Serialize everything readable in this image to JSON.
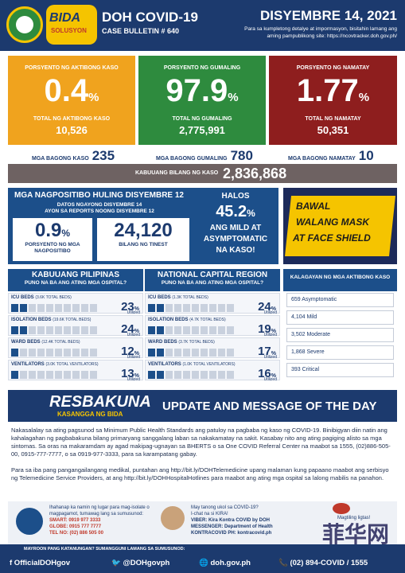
{
  "header": {
    "title": "DOH COVID-19",
    "bulletin": "CASE BULLETIN # 640",
    "date": "DISYEMBRE 14, 2021",
    "note": "Para sa kumpletong detalye at impormasyon, bisitahin lamang ang aming pampublikong site: https://ncovtracker.doh.gov.ph/",
    "logo_text": "BIDA",
    "logo_sub": "SOLUSYON"
  },
  "stats": [
    {
      "head": "PORSYENTO NG AKTIBONG KASO",
      "pct": "0.4",
      "sub": "TOTAL NG AKTIBONG KASO",
      "value": "10,526",
      "color": "#f0a31e"
    },
    {
      "head": "PORSYENTO NG GUMALING",
      "pct": "97.9",
      "sub": "TOTAL NG GUMALING",
      "value": "2,775,991",
      "color": "#2e8b3e"
    },
    {
      "head": "PORSYENTO NG NAMATAY",
      "pct": "1.77",
      "sub": "TOTAL NG NAMATAY",
      "value": "50,351",
      "color": "#8e1e1e"
    }
  ],
  "percent_sign": "%",
  "new_counts": [
    {
      "label": "MGA BAGONG KASO",
      "value": "235"
    },
    {
      "label": "MGA BAGONG GUMALING",
      "value": "780"
    },
    {
      "label": "MGA BAGONG NAMATAY",
      "value": "10"
    }
  ],
  "total": {
    "label": "KABUUANG BILANG NG KASO",
    "value": "2,836,868"
  },
  "positivity": {
    "title": "MGA NAGPOSITIBO HULING DISYEMBRE 12",
    "sub1": "DATOS NGAYONG DISYEMBRE 14",
    "sub2": "AYON SA REPORTS NOONG DISYEMBRE 12",
    "rate": "0.9",
    "rate_label": "PORSYENTO NG MGA NAGPOSITIBO",
    "tested": "24,120",
    "tested_label": "BILANG NG TINEST",
    "halos": "HALOS",
    "asym_pct": "45.2",
    "asym_text1": "ANG MILD AT",
    "asym_text2": "ASYMPTOMATIC",
    "asym_text3": "NA KASO!"
  },
  "mask_banner": {
    "line1": "BAWAL",
    "line2": "WALANG MASK",
    "line3": "AT FACE SHIELD"
  },
  "hospitals": [
    {
      "title": "KABUUANG PILIPINAS",
      "subtitle": "PUNO NA BA ANG ATING MGA OSPITAL?",
      "beds": [
        {
          "name": "ICU BEDS",
          "total": "(3.6K TOTAL BEDS)",
          "value": "23",
          "fill": 0.23
        },
        {
          "name": "ISOLATION BEDS",
          "total": "(19.6K TOTAL BEDS)",
          "value": "24",
          "fill": 0.24
        },
        {
          "name": "WARD BEDS",
          "total": "(12.4K TOTAL BEDS)",
          "value": "12",
          "fill": 0.12
        },
        {
          "name": "VENTILATORS",
          "total": "(3.0K TOTAL VENTILATORS)",
          "value": "13",
          "fill": 0.13
        }
      ]
    },
    {
      "title": "NATIONAL CAPITAL REGION",
      "subtitle": "PUNO NA BA ANG ATING MGA OSPITAL?",
      "beds": [
        {
          "name": "ICU BEDS",
          "total": "(1.3K TOTAL BEDS)",
          "value": "24",
          "fill": 0.24
        },
        {
          "name": "ISOLATION BEDS",
          "total": "(4.7K TOTAL BEDS)",
          "value": "19",
          "fill": 0.19
        },
        {
          "name": "WARD BEDS",
          "total": "(3.7K TOTAL BEDS)",
          "value": "17",
          "fill": 0.17
        },
        {
          "name": "VENTILATORS",
          "total": "(1.0K TOTAL VENTILATORS)",
          "value": "16",
          "fill": 0.16
        }
      ]
    }
  ],
  "utilized": "Utilized",
  "severity": {
    "title": "KALAGAYAN NG MGA AKTIBONG KASO",
    "rows": [
      "659 Asymptomatic",
      "4,104 Mild",
      "3,502 Moderate",
      "1,868 Severe",
      "393 Critical"
    ]
  },
  "update": {
    "brand": "RESBAKUNA",
    "brand_sub": "KASANGGA NG BIDA",
    "title": "UPDATE AND MESSAGE OF THE DAY",
    "p1": "Nakasalalay sa ating pagsunod sa Minimum Public Health Standards ang patuloy na pagbaba ng kaso ng COVID-19. Binibigyan diin natin ang kahalagahan ng pagbabakuna bilang primaryang sanggalang laban sa nakakamatay na sakit. Kasabay nito ang ating pagiging alisto sa mga sintomas. Sa oras na makaramdam ay agad makipag-ugnayan sa BHERTS o sa One COVID Referral Center na maabot sa 1555, (02)886-505-00, 0915-777-7777, o sa 0919-977-3333, para sa karampatang gabay.",
    "p2": "Para sa iba pang pangangailangang medikal, puntahan ang http://bit.ly/DOHTelemedicine upang malaman kung papaano maabot ang serbisyo ng Telemedicine Service Providers, at ang http://bit.ly/DOHHospitalHotlines para maabot ang ating mga ospital sa lalong mabilis na panahon."
  },
  "footer_info": {
    "left_title": "Ihahanap ka namin ng lugar para mag-isolate o magpagamot, tumawag lang sa sumusunod:",
    "smart": "SMART: 0919 977 3333",
    "globe": "GLOBE: 0915 777 7777",
    "telno": "TEL NO: (02) 886 505 00",
    "mid_title": "May tanong ukol sa COVID-19?",
    "mid_sub": "I-chat na si KIRA!",
    "viber": "VIBER: Kira Kontra COVID by DOH",
    "messenger": "MESSENGER: Department of Health",
    "kontra": "KONTRACOVID PH: kontracovid.ph",
    "right": "Magtiling ligtas!"
  },
  "footer_question": "MAYROON PANG KATANUNGAN? SUMANGGUNI LAMANG SA SUMUSUNOD:",
  "footer_bar": {
    "facebook": "f OfficialDOHgov",
    "twitter": "@DOHgovph",
    "web": "doh.gov.ph",
    "phone": "(02) 894-COVID / 1555"
  },
  "watermark": "菲华网"
}
